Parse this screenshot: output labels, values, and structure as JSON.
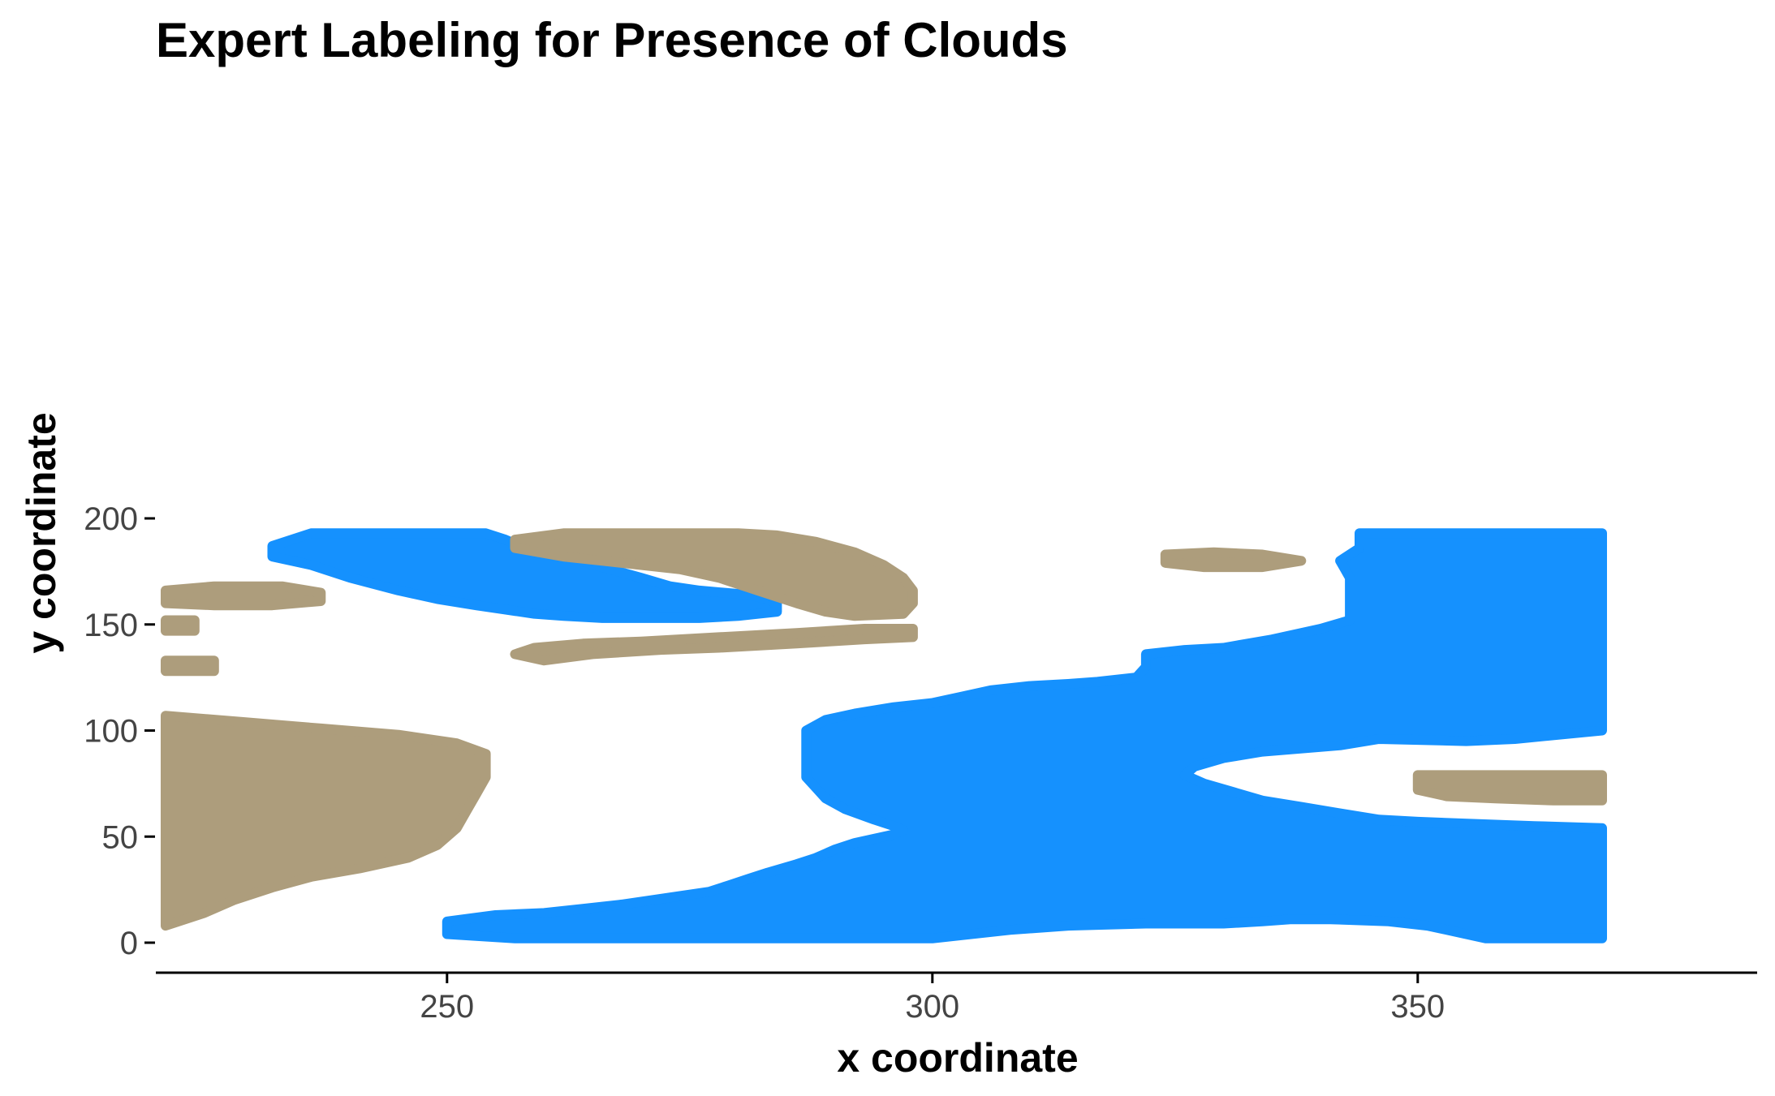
{
  "chart_data": {
    "type": "area",
    "title": "Expert Labeling for Presence of Clouds",
    "xlabel": "x coordinate",
    "ylabel": "y coordinate",
    "xlim": [
      220,
      370
    ],
    "ylim": [
      0,
      200
    ],
    "x_ticks": [
      250,
      300,
      350
    ],
    "y_ticks": [
      0,
      50,
      100,
      150,
      200
    ],
    "grid": false,
    "legend": "none",
    "colors": {
      "blue_label": "#1591FE",
      "tan_label": "#AD9D7C"
    },
    "regions": [
      {
        "color": "blue_label",
        "polygon": [
          [
            232,
            187
          ],
          [
            236,
            193
          ],
          [
            254,
            193
          ],
          [
            256,
            190
          ],
          [
            258,
            186
          ],
          [
            262,
            182
          ],
          [
            266,
            177
          ],
          [
            270,
            172
          ],
          [
            273,
            168
          ],
          [
            276,
            166
          ],
          [
            281,
            164
          ],
          [
            283,
            162
          ],
          [
            284,
            160
          ],
          [
            284,
            156
          ],
          [
            280,
            154
          ],
          [
            276,
            153
          ],
          [
            270,
            153
          ],
          [
            266,
            153
          ],
          [
            262,
            154
          ],
          [
            259,
            155
          ],
          [
            256,
            157
          ],
          [
            253,
            159
          ],
          [
            249,
            162
          ],
          [
            245,
            166
          ],
          [
            240,
            172
          ],
          [
            236,
            178
          ],
          [
            232,
            182
          ]
        ]
      },
      {
        "color": "blue_label",
        "polygon": [
          [
            250,
            4
          ],
          [
            250,
            10
          ],
          [
            255,
            13
          ],
          [
            260,
            14
          ],
          [
            264,
            16
          ],
          [
            268,
            18
          ],
          [
            271,
            20
          ],
          [
            274,
            22
          ],
          [
            277,
            24
          ],
          [
            279,
            27
          ],
          [
            281,
            30
          ],
          [
            283,
            33
          ],
          [
            286,
            37
          ],
          [
            288,
            40
          ],
          [
            290,
            44
          ],
          [
            292,
            47
          ],
          [
            294,
            49
          ],
          [
            296,
            51
          ],
          [
            297,
            53
          ],
          [
            296,
            55
          ],
          [
            294,
            58
          ],
          [
            291,
            63
          ],
          [
            289,
            68
          ],
          [
            288,
            73
          ],
          [
            287,
            78
          ],
          [
            287,
            88
          ],
          [
            287,
            100
          ],
          [
            289,
            105
          ],
          [
            292,
            108
          ],
          [
            296,
            111
          ],
          [
            300,
            113
          ],
          [
            303,
            116
          ],
          [
            306,
            119
          ],
          [
            310,
            121
          ],
          [
            314,
            122
          ],
          [
            317,
            123
          ],
          [
            321,
            125
          ],
          [
            322,
            130
          ],
          [
            322,
            136
          ],
          [
            326,
            138
          ],
          [
            330,
            139
          ],
          [
            335,
            143
          ],
          [
            340,
            148
          ],
          [
            343,
            152
          ],
          [
            343,
            160
          ],
          [
            343,
            172
          ],
          [
            342,
            180
          ],
          [
            344,
            186
          ],
          [
            344,
            193
          ],
          [
            369,
            193
          ],
          [
            369,
            100
          ],
          [
            360,
            96
          ],
          [
            355,
            95
          ],
          [
            346,
            96
          ],
          [
            342,
            93
          ],
          [
            334,
            90
          ],
          [
            330,
            87
          ],
          [
            327,
            83
          ],
          [
            326,
            79
          ],
          [
            328,
            75
          ],
          [
            331,
            71
          ],
          [
            334,
            67
          ],
          [
            338,
            64
          ],
          [
            342,
            61
          ],
          [
            346,
            58
          ],
          [
            350,
            57
          ],
          [
            356,
            56
          ],
          [
            362,
            55
          ],
          [
            369,
            54
          ],
          [
            369,
            2
          ],
          [
            357,
            2
          ],
          [
            354,
            5
          ],
          [
            351,
            8
          ],
          [
            347,
            10
          ],
          [
            341,
            11
          ],
          [
            337,
            11
          ],
          [
            334,
            10
          ],
          [
            330,
            9
          ],
          [
            322,
            9
          ],
          [
            314,
            8
          ],
          [
            308,
            6
          ],
          [
            304,
            4
          ],
          [
            300,
            2
          ],
          [
            257,
            2
          ]
        ]
      },
      {
        "color": "tan_label",
        "polygon": [
          [
            257,
            186
          ],
          [
            257,
            190
          ],
          [
            262,
            193
          ],
          [
            280,
            193
          ],
          [
            284,
            192
          ],
          [
            288,
            189
          ],
          [
            292,
            184
          ],
          [
            295,
            178
          ],
          [
            297,
            172
          ],
          [
            298,
            166
          ],
          [
            298,
            160
          ],
          [
            297,
            155
          ],
          [
            292,
            154
          ],
          [
            289,
            156
          ],
          [
            286,
            160
          ],
          [
            282,
            166
          ],
          [
            278,
            172
          ],
          [
            274,
            176
          ],
          [
            270,
            178
          ],
          [
            266,
            180
          ],
          [
            262,
            182
          ]
        ]
      },
      {
        "color": "tan_label",
        "polygon": [
          [
            257,
            136
          ],
          [
            259,
            139
          ],
          [
            264,
            141
          ],
          [
            270,
            142
          ],
          [
            278,
            144
          ],
          [
            286,
            146
          ],
          [
            293,
            148
          ],
          [
            298,
            148
          ],
          [
            298,
            144
          ],
          [
            293,
            143
          ],
          [
            286,
            141
          ],
          [
            278,
            139
          ],
          [
            272,
            138
          ],
          [
            265,
            136
          ],
          [
            260,
            133
          ]
        ]
      },
      {
        "color": "tan_label",
        "polygon": [
          [
            221,
            160
          ],
          [
            221,
            166
          ],
          [
            226,
            168
          ],
          [
            233,
            168
          ],
          [
            237,
            165
          ],
          [
            237,
            161
          ],
          [
            232,
            159
          ],
          [
            226,
            159
          ]
        ]
      },
      {
        "color": "tan_label",
        "polygon": [
          [
            221,
            147
          ],
          [
            221,
            152
          ],
          [
            224,
            152
          ],
          [
            224,
            147
          ]
        ]
      },
      {
        "color": "tan_label",
        "polygon": [
          [
            221,
            128
          ],
          [
            221,
            133
          ],
          [
            226,
            133
          ],
          [
            226,
            128
          ]
        ]
      },
      {
        "color": "tan_label",
        "polygon": [
          [
            221,
            8
          ],
          [
            221,
            107
          ],
          [
            229,
            104
          ],
          [
            237,
            101
          ],
          [
            245,
            98
          ],
          [
            251,
            94
          ],
          [
            254,
            89
          ],
          [
            254,
            78
          ],
          [
            253,
            70
          ],
          [
            252,
            62
          ],
          [
            251,
            54
          ],
          [
            249,
            46
          ],
          [
            246,
            40
          ],
          [
            241,
            35
          ],
          [
            236,
            31
          ],
          [
            232,
            26
          ],
          [
            228,
            20
          ],
          [
            225,
            14
          ]
        ]
      },
      {
        "color": "tan_label",
        "polygon": [
          [
            350,
            72
          ],
          [
            350,
            79
          ],
          [
            369,
            79
          ],
          [
            369,
            67
          ],
          [
            364,
            67
          ],
          [
            358,
            68
          ],
          [
            353,
            69
          ]
        ]
      },
      {
        "color": "tan_label",
        "polygon": [
          [
            324,
            179
          ],
          [
            324,
            183
          ],
          [
            329,
            184
          ],
          [
            334,
            183
          ],
          [
            338,
            180
          ],
          [
            334,
            177
          ],
          [
            328,
            177
          ]
        ]
      }
    ]
  }
}
